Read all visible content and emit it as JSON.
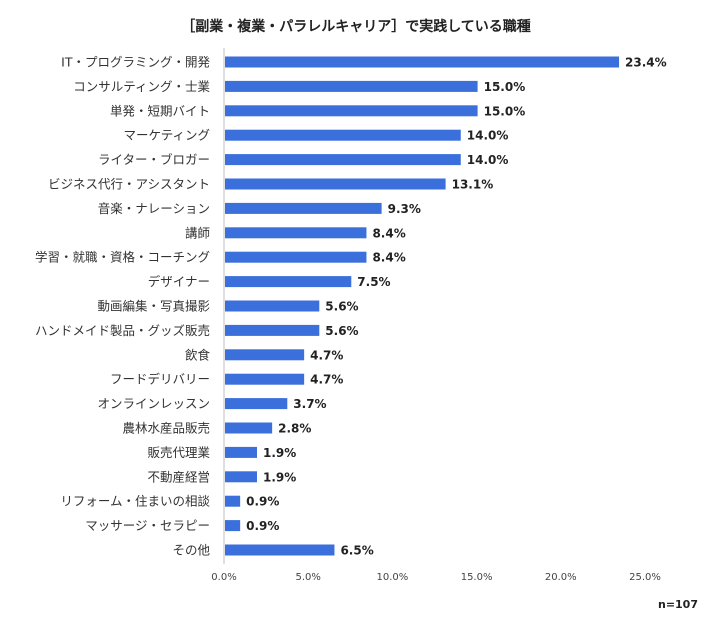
{
  "chart_data": {
    "type": "bar",
    "orientation": "horizontal",
    "title": "［副業・複業・パラレルキャリア］で実践している職種",
    "note": "n=107",
    "categories": [
      "IT・プログラミング・開発",
      "コンサルティング・士業",
      "単発・短期バイト",
      "マーケティング",
      "ライター・ブロガー",
      "ビジネス代行・アシスタント",
      "音楽・ナレーション",
      "講師",
      "学習・就職・資格・コーチング",
      "デザイナー",
      "動画編集・写真撮影",
      "ハンドメイド製品・グッズ販売",
      "飲食",
      "フードデリバリー",
      "オンラインレッスン",
      "農林水産品販売",
      "販売代理業",
      "不動産経営",
      "リフォーム・住まいの相談",
      "マッサージ・セラピー",
      "その他"
    ],
    "values": [
      23.4,
      15.0,
      15.0,
      14.0,
      14.0,
      13.1,
      9.3,
      8.4,
      8.4,
      7.5,
      5.6,
      5.6,
      4.7,
      4.7,
      3.7,
      2.8,
      1.9,
      1.9,
      0.9,
      0.9,
      6.5
    ],
    "value_labels": [
      "23.4%",
      "15.0%",
      "15.0%",
      "14.0%",
      "14.0%",
      "13.1%",
      "9.3%",
      "8.4%",
      "8.4%",
      "7.5%",
      "5.6%",
      "5.6%",
      "4.7%",
      "4.7%",
      "3.7%",
      "2.8%",
      "1.9%",
      "1.9%",
      "0.9%",
      "0.9%",
      "6.5%"
    ],
    "xlim": [
      0,
      25
    ],
    "ticks": [
      0,
      5,
      10,
      15,
      20,
      25
    ],
    "tick_labels": [
      "0.0%",
      "5.0%",
      "10.0%",
      "15.0%",
      "20.0%",
      "25.0%"
    ],
    "grid": false,
    "bar_color": "#3b6fdc"
  }
}
